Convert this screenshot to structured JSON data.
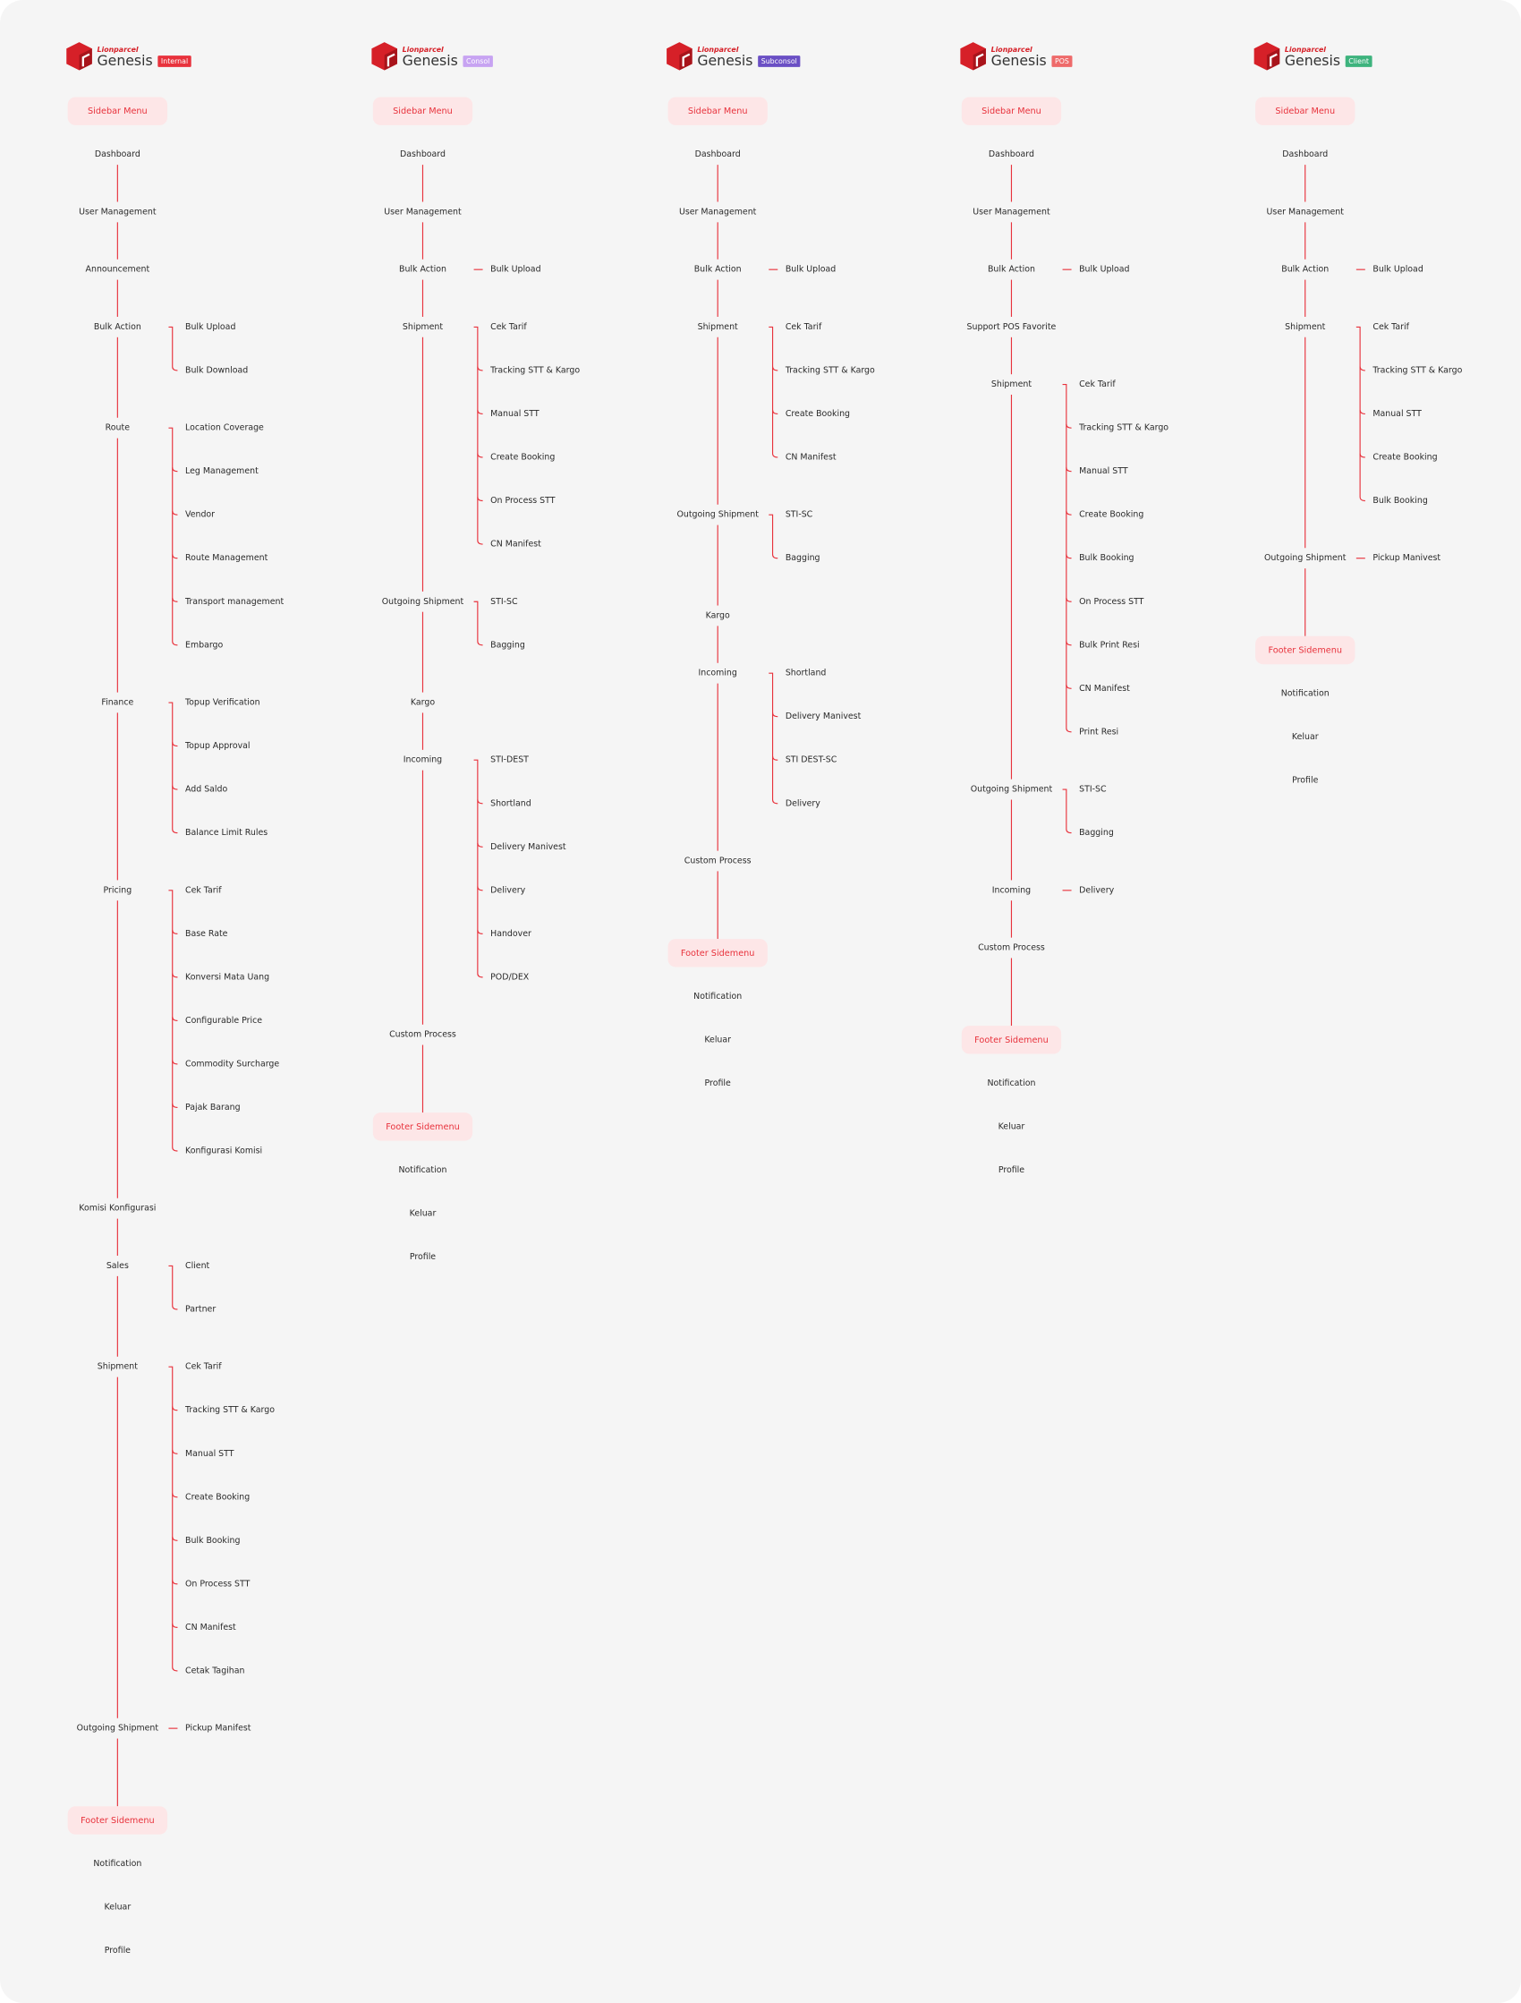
{
  "columns": [
    {
      "brand": "Lionparcel",
      "product": "Genesis",
      "badge": "Internal",
      "badge_color": "#e8323c",
      "menu_title": "Sidebar Menu",
      "items": [
        {
          "label": "Dashboard"
        },
        {
          "label": "User Management"
        },
        {
          "label": "Announcement"
        },
        {
          "label": "Bulk Action",
          "children": [
            "Bulk Upload",
            "Bulk Download"
          ]
        },
        {
          "label": "Route",
          "children": [
            "Location Coverage",
            "Leg Management",
            "Vendor",
            "Route Management",
            "Transport management",
            "Embargo"
          ]
        },
        {
          "label": "Finance",
          "children": [
            "Topup Verification",
            "Topup Approval",
            "Add Saldo",
            "Balance Limit Rules"
          ]
        },
        {
          "label": "Pricing",
          "children": [
            "Cek Tarif",
            "Base Rate",
            "Konversi Mata Uang",
            "Configurable Price",
            "Commodity Surcharge",
            "Pajak Barang",
            "Konfigurasi Komisi"
          ]
        },
        {
          "label": "Komisi Konfigurasi"
        },
        {
          "label": "Sales",
          "children": [
            "Client",
            "Partner"
          ]
        },
        {
          "label": "Shipment",
          "children": [
            "Cek Tarif",
            "Tracking STT & Kargo",
            "Manual STT",
            "Create Booking",
            "Bulk Booking",
            "On Process STT",
            "CN Manifest",
            "Cetak Tagihan"
          ]
        },
        {
          "label": "Outgoing Shipment",
          "children": [
            "Pickup Manifest"
          ]
        }
      ],
      "footer_title": "Footer Sidemenu",
      "footer_items": [
        "Notification",
        "Keluar",
        "Profile"
      ]
    },
    {
      "brand": "Lionparcel",
      "product": "Genesis",
      "badge": "Consol",
      "badge_color": "#c7a3f2",
      "menu_title": "Sidebar Menu",
      "items": [
        {
          "label": "Dashboard"
        },
        {
          "label": "User Management"
        },
        {
          "label": "Bulk Action",
          "children": [
            "Bulk Upload"
          ]
        },
        {
          "label": "Shipment",
          "children": [
            "Cek Tarif",
            "Tracking STT & Kargo",
            "Manual STT",
            "Create Booking",
            "On Process STT",
            "CN Manifest"
          ]
        },
        {
          "label": "Outgoing Shipment",
          "children": [
            "STI-SC",
            "Bagging"
          ]
        },
        {
          "label": "Kargo"
        },
        {
          "label": "Incoming",
          "children": [
            "STI-DEST",
            "Shortland",
            "Delivery Manivest",
            "Delivery",
            "Handover",
            "POD/DEX"
          ]
        },
        {
          "label": "Custom Process"
        }
      ],
      "footer_title": "Footer Sidemenu",
      "footer_items": [
        "Notification",
        "Keluar",
        "Profile"
      ]
    },
    {
      "brand": "Lionparcel",
      "product": "Genesis",
      "badge": "Subconsol",
      "badge_color": "#6a4fc4",
      "menu_title": "Sidebar Menu",
      "items": [
        {
          "label": "Dashboard"
        },
        {
          "label": "User Management"
        },
        {
          "label": "Bulk Action",
          "children": [
            "Bulk Upload"
          ]
        },
        {
          "label": "Shipment",
          "children": [
            "Cek Tarif",
            "Tracking STT & Kargo",
            "Create Booking",
            "CN Manifest"
          ]
        },
        {
          "label": "Outgoing Shipment",
          "children": [
            "STI-SC",
            "Bagging"
          ]
        },
        {
          "label": "Kargo"
        },
        {
          "label": "Incoming",
          "children": [
            "Shortland",
            "Delivery Manivest",
            "STI DEST-SC",
            "Delivery"
          ]
        },
        {
          "label": "Custom Process"
        }
      ],
      "footer_title": "Footer Sidemenu",
      "footer_items": [
        "Notification",
        "Keluar",
        "Profile"
      ]
    },
    {
      "brand": "Lionparcel",
      "product": "Genesis",
      "badge": "POS",
      "badge_color": "#ee6a6a",
      "menu_title": "Sidebar Menu",
      "items": [
        {
          "label": "Dashboard"
        },
        {
          "label": "User Management"
        },
        {
          "label": "Bulk Action",
          "children": [
            "Bulk Upload"
          ]
        },
        {
          "label": "Support POS Favorite"
        },
        {
          "label": "Shipment",
          "children": [
            "Cek Tarif",
            "Tracking STT & Kargo",
            "Manual STT",
            "Create Booking",
            "Bulk Booking",
            "On Process STT",
            "Bulk Print Resi",
            "CN Manifest",
            "Print Resi"
          ]
        },
        {
          "label": "Outgoing Shipment",
          "children": [
            "STI-SC",
            "Bagging"
          ]
        },
        {
          "label": "Incoming",
          "children": [
            "Delivery"
          ]
        },
        {
          "label": "Custom Process"
        }
      ],
      "footer_title": "Footer Sidemenu",
      "footer_items": [
        "Notification",
        "Keluar",
        "Profile"
      ]
    },
    {
      "brand": "Lionparcel",
      "product": "Genesis",
      "badge": "Client",
      "badge_color": "#3db37d",
      "menu_title": "Sidebar Menu",
      "items": [
        {
          "label": "Dashboard"
        },
        {
          "label": "User Management"
        },
        {
          "label": "Bulk Action",
          "children": [
            "Bulk Upload"
          ]
        },
        {
          "label": "Shipment",
          "children": [
            "Cek Tarif",
            "Tracking STT & Kargo",
            "Manual STT",
            "Create Booking",
            "Bulk Booking"
          ]
        },
        {
          "label": "Outgoing Shipment",
          "children": [
            "Pickup Manivest"
          ]
        }
      ],
      "footer_title": "Footer Sidemenu",
      "footer_items": [
        "Notification",
        "Keluar",
        "Profile"
      ]
    }
  ]
}
